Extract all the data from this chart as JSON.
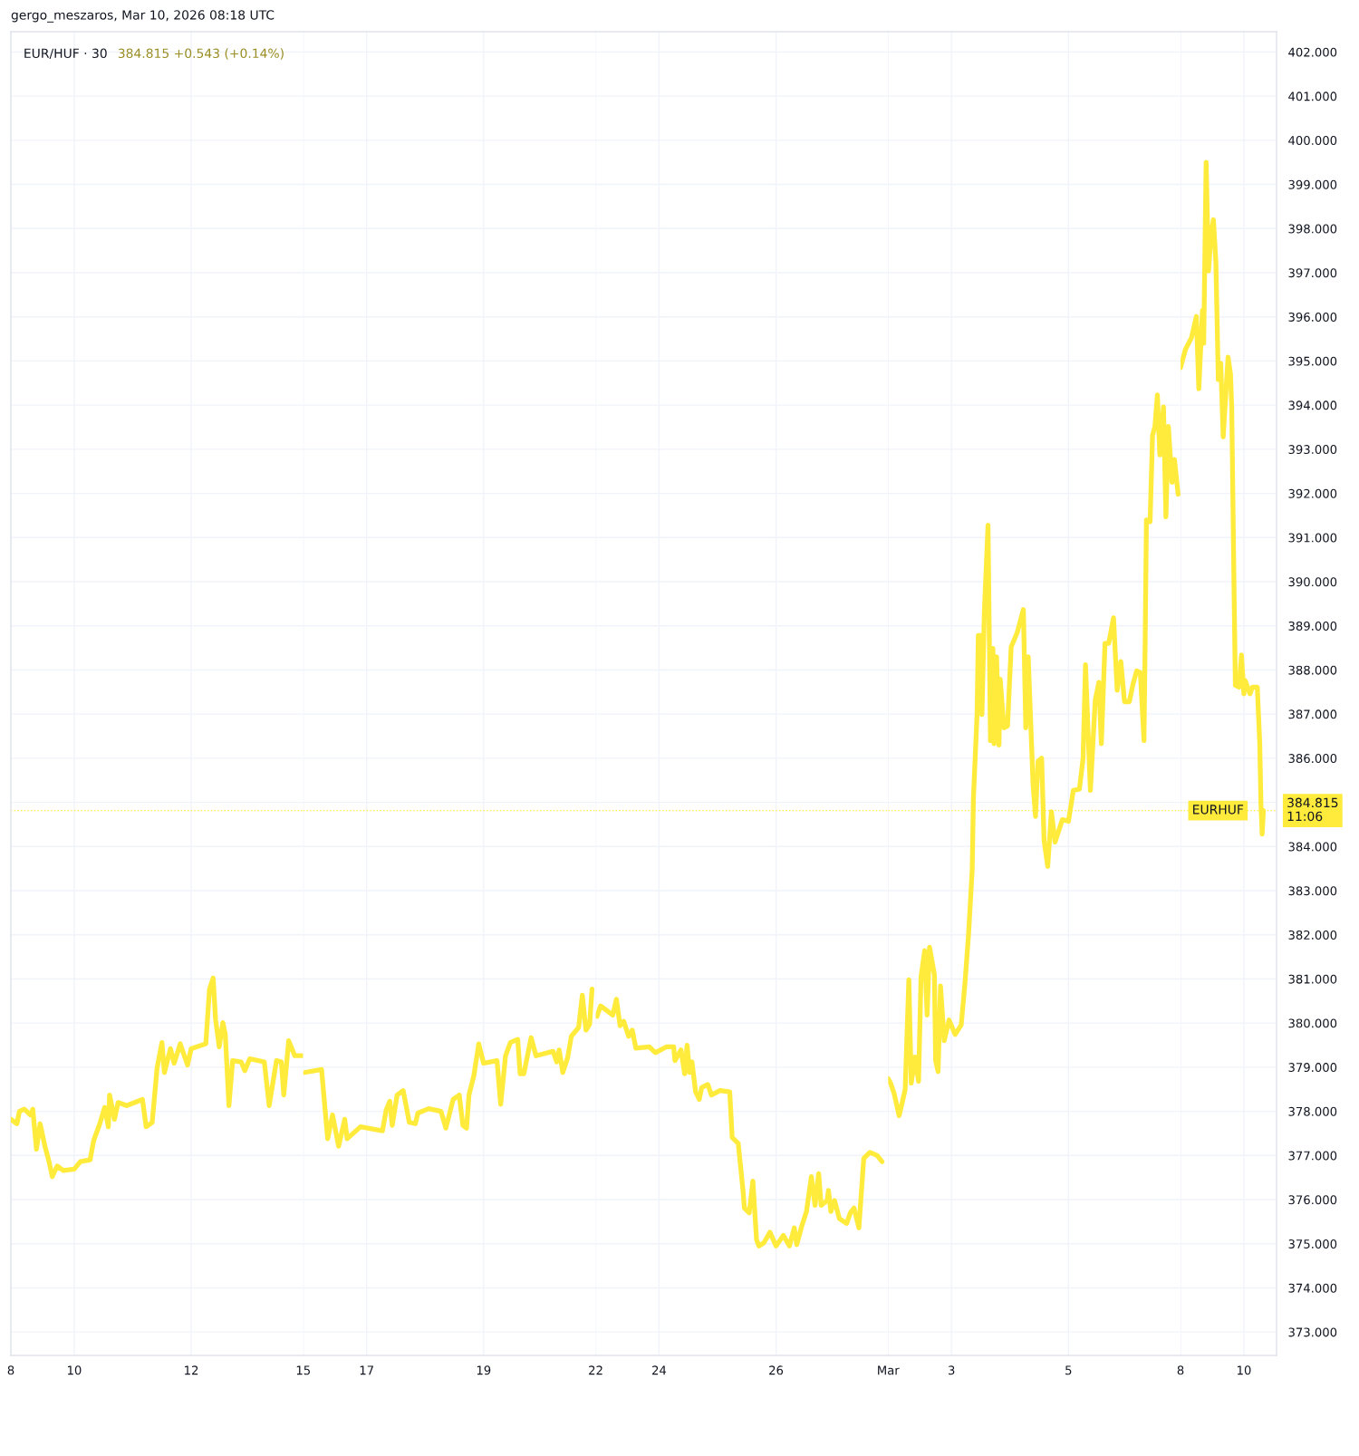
{
  "chart_data": [
    {
      "type": "line",
      "title": "EUR/HUF · 30",
      "subtitle": "384.815 +0.543 (+0.14%)",
      "annotations": [
        "gergo_meszaros, Mar 10, 2026 08:18 UTC"
      ],
      "x": [
        "2026-02-08T22:00",
        "2026-02-09T00:30",
        "2026-02-09T01:30",
        "2026-02-09T03:30",
        "2026-02-09T06:00",
        "2026-02-09T07:00",
        "2026-02-09T08:30",
        "2026-02-09T10:00",
        "2026-02-09T12:00",
        "2026-02-09T13:30",
        "2026-02-09T15:00",
        "2026-02-09T17:00",
        "2026-02-09T19:30",
        "2026-02-10T00:00",
        "2026-02-10T02:30",
        "2026-02-10T06:30",
        "2026-02-10T08:00",
        "2026-02-10T10:30",
        "2026-02-10T12:30",
        "2026-02-10T14:00",
        "2026-02-10T14:30",
        "2026-02-10T16:30",
        "2026-02-10T18:00",
        "2026-02-10T21:30",
        "2026-02-11T04:00",
        "2026-02-11T05:30",
        "2026-02-11T08:00",
        "2026-02-11T10:00",
        "2026-02-11T12:00",
        "2026-02-11T13:00",
        "2026-02-11T15:30",
        "2026-02-11T17:00",
        "2026-02-11T19:30",
        "2026-02-11T22:30",
        "2026-02-12T00:00",
        "2026-02-12T06:00",
        "2026-02-12T07:30",
        "2026-02-12T09:00",
        "2026-02-12T10:00",
        "2026-02-12T11:30",
        "2026-02-12T13:00",
        "2026-02-12T14:00",
        "2026-02-12T15:30",
        "2026-02-12T17:00",
        "2026-02-12T20:30",
        "2026-02-12T22:00",
        "2026-02-13T00:00",
        "2026-02-13T06:00",
        "2026-02-13T08:00",
        "2026-02-13T11:00",
        "2026-02-13T13:00",
        "2026-02-13T14:00",
        "2026-02-13T16:00",
        "2026-02-13T18:30",
        "2026-02-13T21:30"
      ],
      "series": [
        {
          "color": "#ffeb3b",
          "values": [
            377.82,
            377.72,
            378.0,
            378.05,
            377.92,
            378.05,
            377.14,
            377.72,
            377.2,
            376.9,
            376.52,
            376.76,
            376.66,
            376.69,
            376.86,
            376.9,
            377.34,
            377.72,
            378.09,
            377.65,
            378.37,
            377.82,
            378.2,
            378.13,
            378.27,
            377.65,
            377.75,
            378.98,
            379.56,
            378.88,
            379.42,
            379.09,
            379.53,
            379.05,
            379.42,
            379.53,
            380.76,
            381.02,
            380.08,
            379.46,
            380.01,
            379.74,
            378.13,
            379.15,
            379.12,
            378.92,
            379.19,
            379.12,
            378.13,
            379.15,
            379.12,
            378.37,
            379.6,
            379.26,
            379.26
          ]
        }
      ],
      "xlim": [
        "2026-02-08T22:00",
        "2026-02-13T22:00"
      ],
      "ylim": [
        372.47,
        402.46
      ],
      "xticks": [
        {
          "value": "2026-02-08T22:00",
          "label": "8"
        },
        {
          "value": "2026-02-10",
          "label": "10"
        },
        {
          "value": "2026-02-12",
          "label": "12"
        }
      ],
      "yticks": [
        373,
        374,
        375,
        376,
        377,
        378,
        379,
        380,
        381,
        382,
        383,
        384,
        385,
        386,
        387,
        388,
        389,
        390,
        391,
        392,
        393,
        394,
        395,
        396,
        397,
        398,
        399,
        400,
        401,
        402
      ],
      "tick_labels": "x",
      "grid": true,
      "ref_lines": [
        {
          "axis": "y",
          "value": 384.815,
          "color": "#ffeb3b",
          "line_style": "dotted"
        }
      ]
    },
    {
      "type": "line",
      "x": [
        "2026-02-15T22:30",
        "2026-02-16T05:30",
        "2026-02-16T08:00",
        "2026-02-16T10:00",
        "2026-02-16T12:30",
        "2026-02-16T15:00",
        "2026-02-16T16:00",
        "2026-02-16T21:30",
        "2026-02-17T06:30",
        "2026-02-17T08:00",
        "2026-02-17T09:30",
        "2026-02-17T10:30",
        "2026-02-17T12:30",
        "2026-02-17T15:00",
        "2026-02-17T17:30",
        "2026-02-17T20:00",
        "2026-02-17T21:00",
        "2026-02-18T01:30",
        "2026-02-18T06:30",
        "2026-02-18T08:30",
        "2026-02-18T11:30",
        "2026-02-18T14:00",
        "2026-02-18T15:30",
        "2026-02-18T17:00",
        "2026-02-18T18:00",
        "2026-02-18T20:00",
        "2026-02-18T22:00",
        "2026-02-19T00:00",
        "2026-02-19T05:30",
        "2026-02-19T07:00",
        "2026-02-19T09:00",
        "2026-02-19T11:00",
        "2026-02-19T14:00",
        "2026-02-19T15:00",
        "2026-02-19T16:30",
        "2026-02-19T19:30",
        "2026-02-19T21:30",
        "2026-02-20T04:30",
        "2026-02-20T06:00",
        "2026-02-20T07:00",
        "2026-02-20T08:30",
        "2026-02-20T10:30",
        "2026-02-20T12:00",
        "2026-02-20T15:00",
        "2026-02-20T16:30",
        "2026-02-20T18:00",
        "2026-02-20T19:30",
        "2026-02-20T20:30"
      ],
      "series": [
        {
          "color": "#ffeb3b",
          "values": [
            378.88,
            378.95,
            377.38,
            377.92,
            377.21,
            377.82,
            377.38,
            377.65,
            377.56,
            378.03,
            378.23,
            377.68,
            378.37,
            378.47,
            377.75,
            377.72,
            377.96,
            378.06,
            378.0,
            377.62,
            378.27,
            378.37,
            377.68,
            377.62,
            378.37,
            378.81,
            379.53,
            379.09,
            379.15,
            378.16,
            379.26,
            379.56,
            379.63,
            378.85,
            378.85,
            379.67,
            379.26,
            379.36,
            379.12,
            379.39,
            378.88,
            379.22,
            379.7,
            379.9,
            380.63,
            379.84,
            379.97,
            380.77
          ]
        }
      ],
      "xlim": [
        "2026-02-15T22:00",
        "2026-02-20T22:00"
      ],
      "ylim": [
        372.47,
        402.46
      ],
      "xticks": [
        {
          "value": "2026-02-15T22:00",
          "label": "15"
        },
        {
          "value": "2026-02-17",
          "label": "17"
        },
        {
          "value": "2026-02-19",
          "label": "19"
        }
      ],
      "yticks": [
        373,
        374,
        375,
        376,
        377,
        378,
        379,
        380,
        381,
        382,
        383,
        384,
        385,
        386,
        387,
        388,
        389,
        390,
        391,
        392,
        393,
        394,
        395,
        396,
        397,
        398,
        399,
        400,
        401,
        402
      ],
      "tick_labels": "x",
      "grid": true,
      "ref_lines": [
        {
          "axis": "y",
          "value": 384.815,
          "color": "#ffeb3b",
          "line_style": "dotted"
        }
      ]
    },
    {
      "type": "line",
      "x": [
        "2026-02-22T22:30",
        "2026-02-23T00:00",
        "2026-02-23T05:00",
        "2026-02-23T06:30",
        "2026-02-23T08:00",
        "2026-02-23T09:30",
        "2026-02-23T11:30",
        "2026-02-23T13:00",
        "2026-02-23T14:30",
        "2026-02-23T20:00",
        "2026-02-23T22:30",
        "2026-02-24T03:00",
        "2026-02-24T06:00",
        "2026-02-24T06:30",
        "2026-02-24T09:00",
        "2026-02-24T10:30",
        "2026-02-24T11:30",
        "2026-02-24T12:30",
        "2026-02-24T13:30",
        "2026-02-24T15:00",
        "2026-02-24T16:30",
        "2026-02-24T17:30",
        "2026-02-24T20:00",
        "2026-02-24T21:30",
        "2026-02-25T01:00",
        "2026-02-25T05:00",
        "2026-02-25T06:00",
        "2026-02-25T08:30",
        "2026-02-25T10:30",
        "2026-02-25T11:00",
        "2026-02-25T13:00",
        "2026-02-25T14:30",
        "2026-02-25T16:00",
        "2026-02-25T17:00",
        "2026-02-25T19:00",
        "2026-02-25T21:30",
        "2026-02-26T00:00",
        "2026-02-26T03:00",
        "2026-02-26T05:30",
        "2026-02-26T07:30",
        "2026-02-26T08:30",
        "2026-02-26T10:30",
        "2026-02-26T12:30",
        "2026-02-26T14:30",
        "2026-02-26T16:00",
        "2026-02-26T17:30",
        "2026-02-26T18:30",
        "2026-02-26T21:00",
        "2026-02-26T21:30",
        "2026-02-26T22:30",
        "2026-02-27T00:00",
        "2026-02-27T02:00",
        "2026-02-27T05:00",
        "2026-02-27T06:30",
        "2026-02-27T08:00",
        "2026-02-27T10:00",
        "2026-02-27T12:00",
        "2026-02-27T14:30",
        "2026-02-27T17:30",
        "2026-02-27T19:30"
      ],
      "series": [
        {
          "color": "#ffeb3b",
          "values": [
            380.15,
            380.39,
            380.18,
            380.54,
            379.94,
            380.04,
            379.7,
            379.84,
            379.43,
            379.46,
            379.33,
            379.46,
            379.46,
            379.15,
            379.39,
            378.85,
            379.5,
            378.88,
            379.12,
            378.44,
            378.27,
            378.54,
            378.61,
            378.37,
            378.47,
            378.44,
            377.41,
            377.27,
            376.18,
            375.81,
            375.7,
            376.42,
            375.09,
            374.95,
            375.02,
            375.26,
            374.95,
            375.19,
            374.95,
            375.36,
            374.98,
            375.39,
            375.73,
            376.52,
            375.87,
            376.59,
            375.87,
            375.98,
            376.21,
            375.73,
            375.98,
            375.57,
            375.46,
            375.7,
            375.81,
            375.36,
            376.93,
            377.07,
            377.0,
            376.86
          ]
        }
      ],
      "xlim": [
        "2026-02-22T22:00",
        "2026-02-27T22:00"
      ],
      "ylim": [
        372.47,
        402.46
      ],
      "xticks": [
        {
          "value": "2026-02-22T22:00",
          "label": "22"
        },
        {
          "value": "2026-02-24",
          "label": "24"
        },
        {
          "value": "2026-02-26",
          "label": "26"
        }
      ],
      "yticks": [
        373,
        374,
        375,
        376,
        377,
        378,
        379,
        380,
        381,
        382,
        383,
        384,
        385,
        386,
        387,
        388,
        389,
        390,
        391,
        392,
        393,
        394,
        395,
        396,
        397,
        398,
        399,
        400,
        401,
        402
      ],
      "tick_labels": "x",
      "grid": true,
      "ref_lines": [
        {
          "axis": "y",
          "value": 384.815,
          "color": "#ffeb3b",
          "line_style": "dotted"
        }
      ]
    },
    {
      "type": "line",
      "x": [
        "2026-03-01T22:00",
        "2026-03-01T23:00",
        "2026-03-02T00:30",
        "2026-03-02T02:30",
        "2026-03-02T04:00",
        "2026-03-02T05:00",
        "2026-03-02T06:30",
        "2026-03-02T07:30",
        "2026-03-02T09:00",
        "2026-03-02T10:30",
        "2026-03-02T11:30",
        "2026-03-02T13:00",
        "2026-03-02T14:00",
        "2026-03-02T15:00",
        "2026-03-02T17:00",
        "2026-03-02T17:30",
        "2026-03-02T18:30",
        "2026-03-02T19:30",
        "2026-03-02T21:00",
        "2026-03-02T23:00",
        "2026-03-03T01:30",
        "2026-03-03T04:00",
        "2026-03-03T05:30",
        "2026-03-03T07:00",
        "2026-03-03T08:30",
        "2026-03-03T09:00",
        "2026-03-03T10:30",
        "2026-03-03T11:00",
        "2026-03-03T12:00",
        "2026-03-03T12:30",
        "2026-03-03T13:30",
        "2026-03-03T15:00",
        "2026-03-03T16:00",
        "2026-03-03T17:00",
        "2026-03-03T17:30",
        "2026-03-03T18:30",
        "2026-03-03T19:30",
        "2026-03-03T20:00",
        "2026-03-03T21:30",
        "2026-03-03T23:00",
        "2026-03-04T00:30",
        "2026-03-04T03:00",
        "2026-03-04T05:30",
        "2026-03-04T06:30",
        "2026-03-04T07:30",
        "2026-03-04T09:30",
        "2026-03-04T10:30",
        "2026-03-04T11:30",
        "2026-03-04T13:00",
        "2026-03-04T14:00",
        "2026-03-04T15:30",
        "2026-03-04T17:00",
        "2026-03-04T18:30",
        "2026-03-04T21:30",
        "2026-03-05T00:00",
        "2026-03-05T02:00",
        "2026-03-05T04:30",
        "2026-03-05T06:00",
        "2026-03-05T07:00",
        "2026-03-05T09:00",
        "2026-03-05T11:00",
        "2026-03-05T12:30",
        "2026-03-05T13:30",
        "2026-03-05T15:00",
        "2026-03-05T16:30",
        "2026-03-05T18:30",
        "2026-03-05T20:00",
        "2026-03-05T21:30",
        "2026-03-05T23:00",
        "2026-03-06T01:00",
        "2026-03-06T02:30",
        "2026-03-06T04:00",
        "2026-03-06T05:30",
        "2026-03-06T07:00",
        "2026-03-06T07:30",
        "2026-03-06T08:00",
        "2026-03-06T09:30",
        "2026-03-06T10:30",
        "2026-03-06T11:30",
        "2026-03-06T12:30",
        "2026-03-06T13:30",
        "2026-03-06T15:00",
        "2026-03-06T16:00",
        "2026-03-06T17:00",
        "2026-03-06T18:30",
        "2026-03-06T19:30",
        "2026-03-06T21:00"
      ],
      "series": [
        {
          "color": "#ffeb3b",
          "values": [
            378.74,
            378.64,
            378.4,
            377.9,
            378.25,
            378.5,
            380.98,
            378.64,
            379.23,
            378.68,
            381.05,
            381.64,
            380.18,
            381.72,
            381.09,
            379.15,
            378.9,
            380.84,
            379.6,
            380.07,
            379.74,
            379.96,
            380.88,
            382.0,
            383.47,
            385.08,
            386.99,
            388.78,
            388.78,
            386.99,
            389.33,
            391.28,
            386.4,
            388.49,
            386.33,
            388.3,
            386.3,
            387.79,
            386.69,
            386.73,
            388.52,
            388.85,
            389.37,
            386.69,
            388.3,
            385.38,
            384.68,
            385.93,
            386.0,
            384.13,
            383.55,
            384.79,
            384.1,
            384.61,
            384.57,
            385.27,
            385.3,
            386.0,
            388.12,
            385.27,
            387.32,
            387.72,
            386.33,
            388.6,
            388.6,
            389.18,
            387.54,
            388.19,
            387.28,
            387.28,
            387.68,
            387.98,
            387.94,
            386.4,
            388.74,
            391.4,
            391.36,
            393.31,
            393.52,
            394.23,
            392.87,
            393.96,
            391.47,
            393.52,
            392.25,
            392.77,
            391.98
          ]
        }
      ],
      "xlim": [
        "2026-03-01T22:00",
        "2026-03-06T22:00"
      ],
      "ylim": [
        372.47,
        402.46
      ],
      "xticks": [
        {
          "value": "2026-03-01T22:00",
          "label": "Mar"
        },
        {
          "value": "2026-03-03",
          "label": "3"
        },
        {
          "value": "2026-03-05",
          "label": "5"
        }
      ],
      "yticks": [
        373,
        374,
        375,
        376,
        377,
        378,
        379,
        380,
        381,
        382,
        383,
        384,
        385,
        386,
        387,
        388,
        389,
        390,
        391,
        392,
        393,
        394,
        395,
        396,
        397,
        398,
        399,
        400,
        401,
        402
      ],
      "tick_labels": "x",
      "grid": true,
      "ref_lines": [
        {
          "axis": "y",
          "value": 384.815,
          "color": "#ffeb3b",
          "line_style": "dotted"
        }
      ]
    },
    {
      "type": "line",
      "annotations": [
        "384.815\n11:06"
      ],
      "x": [
        "2026-03-08T22:00",
        "2026-03-09T00:00",
        "2026-03-09T02:30",
        "2026-03-09T04:30",
        "2026-03-09T05:30",
        "2026-03-09T07:00",
        "2026-03-09T07:30",
        "2026-03-09T08:30",
        "2026-03-09T09:30",
        "2026-03-09T10:30",
        "2026-03-09T11:30",
        "2026-03-09T12:30",
        "2026-03-09T13:30",
        "2026-03-09T14:30",
        "2026-03-09T15:30",
        "2026-03-09T17:30",
        "2026-03-09T18:30",
        "2026-03-09T19:00",
        "2026-03-09T20:00",
        "2026-03-09T20:30",
        "2026-03-09T22:00",
        "2026-03-09T23:00",
        "2026-03-10T00:00",
        "2026-03-10T00:30",
        "2026-03-10T02:30",
        "2026-03-10T03:30",
        "2026-03-10T05:30",
        "2026-03-10T06:30",
        "2026-03-10T07:00",
        "2026-03-10T07:30",
        "2026-03-10T08:00"
      ],
      "series": [
        {
          "color": "#ffeb3b",
          "values": [
            394.85,
            395.26,
            395.53,
            396.01,
            394.37,
            396.15,
            395.4,
            399.5,
            397.04,
            397.86,
            398.2,
            397.24,
            394.58,
            394.95,
            393.28,
            395.09,
            394.71,
            393.96,
            389.66,
            387.65,
            387.61,
            388.34,
            387.46,
            387.76,
            387.46,
            387.61,
            387.61,
            386.36,
            384.94,
            384.28,
            384.815
          ]
        }
      ],
      "xlim": [
        "2026-03-08T22:00",
        "2026-03-10T13:24"
      ],
      "ylim": [
        372.47,
        402.46
      ],
      "xticks": [
        {
          "value": "2026-03-08T22:00",
          "label": "8"
        },
        {
          "value": "2026-03-10",
          "label": "10"
        }
      ],
      "yticks": [
        {
          "value": 373,
          "label": "373.000"
        },
        {
          "value": 374,
          "label": "374.000"
        },
        {
          "value": 375,
          "label": "375.000"
        },
        {
          "value": 376,
          "label": "376.000"
        },
        {
          "value": 377,
          "label": "377.000"
        },
        {
          "value": 378,
          "label": "378.000"
        },
        {
          "value": 379,
          "label": "379.000"
        },
        {
          "value": 380,
          "label": "380.000"
        },
        {
          "value": 381,
          "label": "381.000"
        },
        {
          "value": 382,
          "label": "382.000"
        },
        {
          "value": 383,
          "label": "383.000"
        },
        {
          "value": 384,
          "label": "384.000"
        },
        {
          "value": 385,
          "label": null
        },
        {
          "value": 386,
          "label": "386.000"
        },
        {
          "value": 387,
          "label": "387.000"
        },
        {
          "value": 388,
          "label": "388.000"
        },
        {
          "value": 389,
          "label": "389.000"
        },
        {
          "value": 390,
          "label": "390.000"
        },
        {
          "value": 391,
          "label": "391.000"
        },
        {
          "value": 392,
          "label": "392.000"
        },
        {
          "value": 393,
          "label": "393.000"
        },
        {
          "value": 394,
          "label": "394.000"
        },
        {
          "value": 395,
          "label": "395.000"
        },
        {
          "value": 396,
          "label": "396.000"
        },
        {
          "value": 397,
          "label": "397.000"
        },
        {
          "value": 398,
          "label": "398.000"
        },
        {
          "value": 399,
          "label": "399.000"
        },
        {
          "value": 400,
          "label": "400.000"
        },
        {
          "value": 401,
          "label": "401.000"
        },
        {
          "value": 402,
          "label": "402.000"
        }
      ],
      "grid": true,
      "ref_lines": [
        {
          "axis": "y",
          "value": 384.815,
          "label": "EURHUF",
          "color": "#ffeb3b",
          "line_style": "dotted"
        }
      ]
    }
  ]
}
